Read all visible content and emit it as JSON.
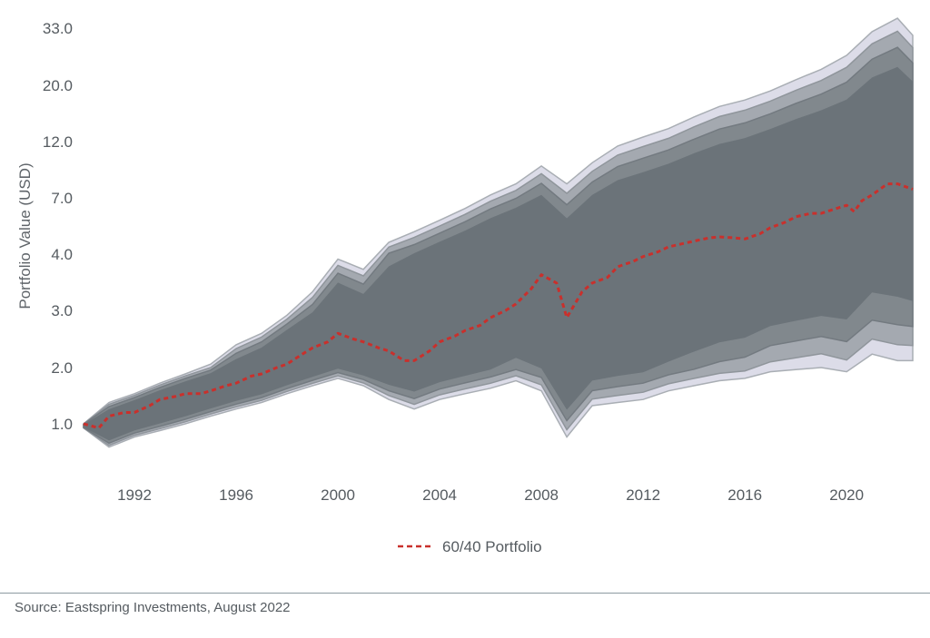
{
  "chart_data": {
    "type": "line",
    "title": "",
    "ylabel": "Portfolio Value (USD)",
    "xlabel": "",
    "y_scale": "log",
    "y_ticks": [
      1.0,
      2.0,
      3.0,
      4.0,
      7.0,
      12.0,
      20.0,
      33.0
    ],
    "y_tick_labels": [
      "1.0",
      "2.0",
      "3.0",
      "4.0",
      "7.0",
      "12.0",
      "20.0",
      "33.0"
    ],
    "x_ticks": [
      1992,
      1996,
      2000,
      2004,
      2008,
      2012,
      2016,
      2020
    ],
    "x_tick_labels": [
      "1992",
      "1996",
      "2000",
      "2004",
      "2008",
      "2012",
      "2016",
      "2020"
    ],
    "xlim": [
      1990.0,
      2022.6
    ],
    "grid": false,
    "legend_position": "bottom-center",
    "highlight_series": {
      "name": "60/40 Portfolio",
      "style": "dashed",
      "color": "#c9302c",
      "x": [
        1990.0,
        1990.6,
        1991.0,
        1991.6,
        1992.0,
        1992.6,
        1993.0,
        1993.6,
        1994.0,
        1994.6,
        1995.0,
        1995.6,
        1996.0,
        1996.6,
        1997.0,
        1997.6,
        1998.0,
        1998.6,
        1999.0,
        1999.6,
        2000.0,
        2000.6,
        2001.0,
        2001.6,
        2002.0,
        2002.6,
        2003.0,
        2003.6,
        2004.0,
        2004.6,
        2005.0,
        2005.6,
        2006.0,
        2006.6,
        2007.0,
        2007.6,
        2008.0,
        2008.6,
        2009.0,
        2009.6,
        2010.0,
        2010.6,
        2011.0,
        2011.6,
        2012.0,
        2012.6,
        2013.0,
        2013.6,
        2014.0,
        2014.6,
        2015.0,
        2015.6,
        2016.0,
        2016.6,
        2017.0,
        2017.6,
        2018.0,
        2018.6,
        2019.0,
        2019.6,
        2020.0,
        2020.3,
        2020.6,
        2021.0,
        2021.6,
        2022.0,
        2022.6
      ],
      "y": [
        1.0,
        0.95,
        1.1,
        1.15,
        1.15,
        1.25,
        1.35,
        1.4,
        1.45,
        1.45,
        1.5,
        1.6,
        1.65,
        1.8,
        1.85,
        2.0,
        2.05,
        2.2,
        2.3,
        2.4,
        2.55,
        2.45,
        2.4,
        2.3,
        2.25,
        2.1,
        2.1,
        2.25,
        2.4,
        2.5,
        2.6,
        2.7,
        2.85,
        3.0,
        3.1,
        3.35,
        3.6,
        3.45,
        2.85,
        3.3,
        3.45,
        3.55,
        3.75,
        3.85,
        3.95,
        4.1,
        4.3,
        4.45,
        4.55,
        4.7,
        4.75,
        4.7,
        4.65,
        4.9,
        5.2,
        5.5,
        5.8,
        6.0,
        6.0,
        6.3,
        6.5,
        6.1,
        6.8,
        7.2,
        8.0,
        8.0,
        7.6
      ]
    },
    "band": {
      "x": [
        1990.0,
        1991.0,
        1992.0,
        1993.0,
        1994.0,
        1995.0,
        1996.0,
        1997.0,
        1998.0,
        1999.0,
        2000.0,
        2001.0,
        2002.0,
        2003.0,
        2004.0,
        2005.0,
        2006.0,
        2007.0,
        2008.0,
        2009.0,
        2010.0,
        2011.0,
        2012.0,
        2013.0,
        2014.0,
        2015.0,
        2016.0,
        2017.0,
        2018.0,
        2019.0,
        2020.0,
        2021.0,
        2022.0,
        2022.6
      ],
      "upper": [
        1.0,
        1.3,
        1.45,
        1.65,
        1.85,
        2.05,
        2.35,
        2.55,
        2.9,
        3.3,
        3.9,
        3.7,
        4.5,
        5.0,
        5.6,
        6.3,
        7.2,
        8.0,
        9.5,
        8.0,
        9.8,
        11.5,
        12.5,
        13.5,
        15.0,
        16.5,
        17.5,
        19.0,
        21.0,
        23.0,
        26.0,
        32.0,
        36.0,
        31.0
      ],
      "lower": [
        0.95,
        0.75,
        0.85,
        0.92,
        1.0,
        1.1,
        1.2,
        1.3,
        1.45,
        1.6,
        1.75,
        1.6,
        1.35,
        1.2,
        1.35,
        1.45,
        1.55,
        1.7,
        1.5,
        0.85,
        1.25,
        1.3,
        1.35,
        1.5,
        1.6,
        1.7,
        1.75,
        1.9,
        1.95,
        2.0,
        1.9,
        2.2,
        2.1,
        2.1
      ]
    }
  },
  "legend": {
    "label": "60/40 Portfolio"
  },
  "source": "Source: Eastspring Investments, August 2022",
  "colors": {
    "band_dark": "#6b7379",
    "band_light": "#9aa0a6",
    "band_outer": "#dcdce8",
    "highlight": "#c9302c",
    "text": "#555b60"
  }
}
